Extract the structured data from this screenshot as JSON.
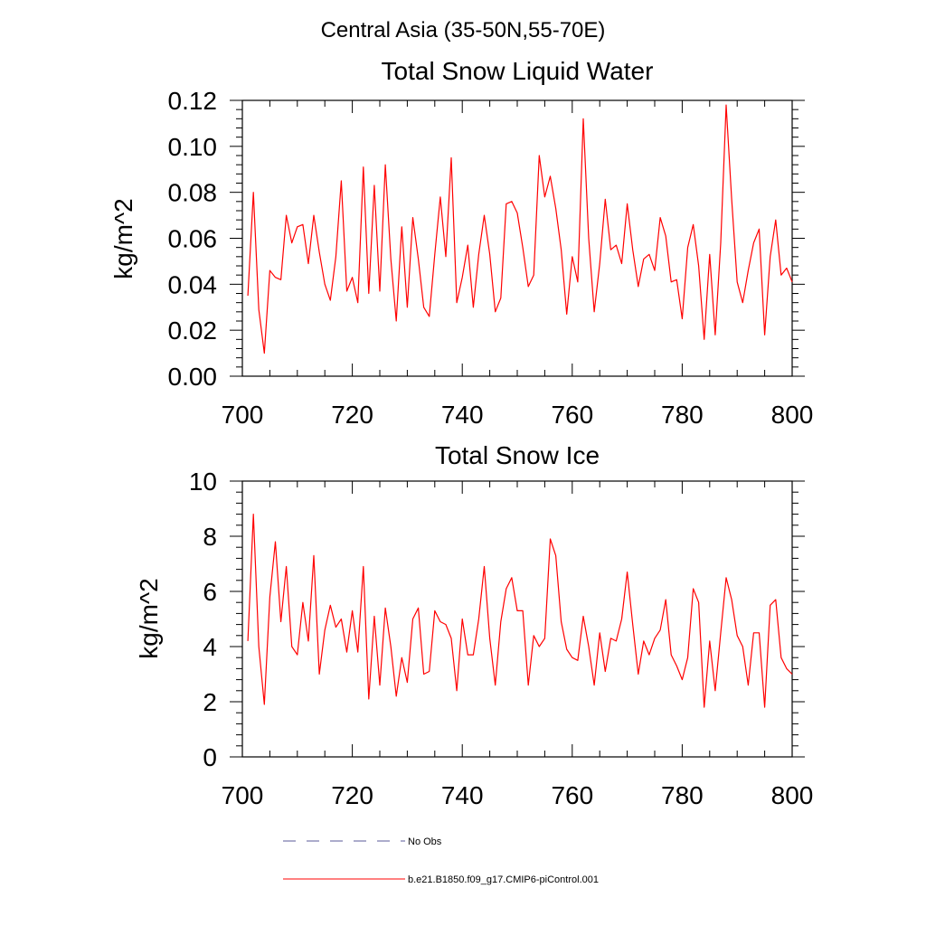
{
  "figure": {
    "main_title": "Central Asia (35-50N,55-70E)"
  },
  "chart_data": [
    {
      "type": "line",
      "title": "Total Snow Liquid Water",
      "xlabel": "",
      "ylabel": "kg/m^2",
      "xlim": [
        700,
        800
      ],
      "ylim": [
        0,
        0.12
      ],
      "x_ticks": [
        700,
        720,
        740,
        760,
        780,
        800
      ],
      "x_tick_labels": [
        "700",
        "720",
        "740",
        "760",
        "780",
        "800"
      ],
      "y_ticks": [
        0,
        0.02,
        0.04,
        0.06,
        0.08,
        0.1,
        0.12
      ],
      "y_tick_labels": [
        "0.00",
        "0.02",
        "0.04",
        "0.06",
        "0.08",
        "0.10",
        "0.12"
      ],
      "grid": false,
      "x_start": 701,
      "series": [
        {
          "name": "b.e21.B1850.f09_g17.CMIP6-piControl.001",
          "color": "#ff0000",
          "values": [
            0.035,
            0.08,
            0.029,
            0.01,
            0.046,
            0.043,
            0.042,
            0.07,
            0.058,
            0.065,
            0.066,
            0.049,
            0.07,
            0.054,
            0.04,
            0.033,
            0.052,
            0.085,
            0.037,
            0.043,
            0.032,
            0.091,
            0.036,
            0.083,
            0.037,
            0.092,
            0.051,
            0.024,
            0.065,
            0.03,
            0.069,
            0.051,
            0.03,
            0.026,
            0.053,
            0.078,
            0.052,
            0.095,
            0.032,
            0.043,
            0.057,
            0.03,
            0.053,
            0.07,
            0.053,
            0.028,
            0.034,
            0.075,
            0.076,
            0.071,
            0.056,
            0.039,
            0.044,
            0.096,
            0.078,
            0.087,
            0.073,
            0.055,
            0.027,
            0.052,
            0.041,
            0.112,
            0.06,
            0.028,
            0.049,
            0.077,
            0.055,
            0.057,
            0.049,
            0.075,
            0.055,
            0.039,
            0.051,
            0.053,
            0.046,
            0.069,
            0.061,
            0.041,
            0.042,
            0.025,
            0.056,
            0.066,
            0.048,
            0.016,
            0.053,
            0.018,
            0.058,
            0.118,
            0.077,
            0.041,
            0.032,
            0.046,
            0.058,
            0.064,
            0.018,
            0.052,
            0.068,
            0.044,
            0.047,
            0.041
          ]
        }
      ]
    },
    {
      "type": "line",
      "title": "Total Snow Ice",
      "xlabel": "",
      "ylabel": "kg/m^2",
      "xlim": [
        700,
        800
      ],
      "ylim": [
        0,
        10
      ],
      "x_ticks": [
        700,
        720,
        740,
        760,
        780,
        800
      ],
      "x_tick_labels": [
        "700",
        "720",
        "740",
        "760",
        "780",
        "800"
      ],
      "y_ticks": [
        0,
        2,
        4,
        6,
        8,
        10
      ],
      "y_tick_labels": [
        "0",
        "2",
        "4",
        "6",
        "8",
        "10"
      ],
      "grid": false,
      "x_start": 701,
      "series": [
        {
          "name": "b.e21.B1850.f09_g17.CMIP6-piControl.001",
          "color": "#ff0000",
          "values": [
            4.2,
            8.8,
            4.0,
            1.9,
            5.8,
            7.8,
            4.9,
            6.9,
            4.0,
            3.7,
            5.6,
            4.2,
            7.3,
            3.0,
            4.6,
            5.5,
            4.7,
            5.0,
            3.8,
            5.3,
            3.8,
            6.9,
            2.1,
            5.1,
            2.6,
            5.4,
            4.0,
            2.2,
            3.6,
            2.7,
            5.0,
            5.4,
            3.0,
            3.1,
            5.3,
            4.9,
            4.8,
            4.3,
            2.4,
            5.0,
            3.7,
            3.7,
            5.0,
            6.9,
            4.3,
            2.6,
            4.9,
            6.1,
            6.5,
            5.3,
            5.3,
            2.6,
            4.4,
            4.0,
            4.3,
            7.9,
            7.3,
            4.9,
            3.9,
            3.6,
            3.5,
            5.1,
            4.0,
            2.6,
            4.5,
            3.1,
            4.3,
            4.2,
            5.0,
            6.7,
            4.8,
            3.0,
            4.2,
            3.7,
            4.3,
            4.6,
            5.7,
            3.7,
            3.3,
            2.8,
            3.6,
            6.1,
            5.6,
            1.8,
            4.2,
            2.4,
            4.5,
            6.5,
            5.7,
            4.4,
            4.0,
            2.6,
            4.5,
            4.5,
            1.8,
            5.5,
            5.7,
            3.6,
            3.2,
            3.0
          ]
        }
      ]
    }
  ],
  "legend": {
    "items": [
      {
        "label": "No Obs",
        "color": "#5a5a9a",
        "dashed": true
      },
      {
        "label": "b.e21.B1850.f09_g17.CMIP6-piControl.001",
        "color": "#ff0000",
        "dashed": false
      }
    ]
  }
}
